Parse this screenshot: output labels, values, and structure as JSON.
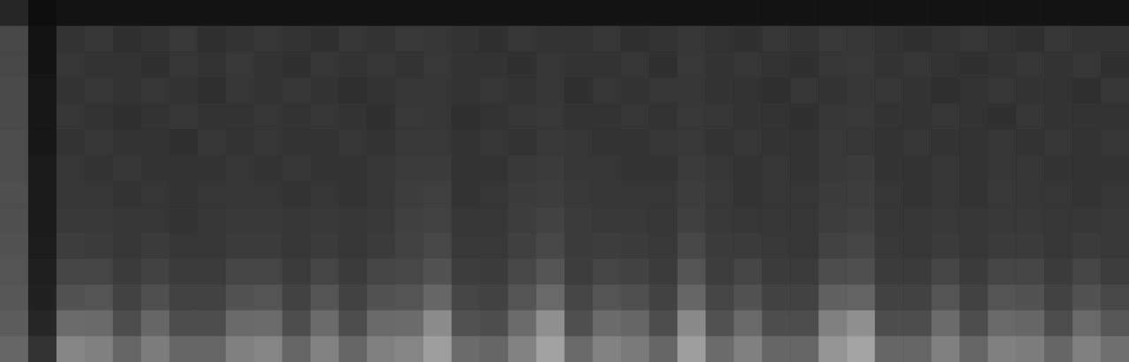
{
  "chart_data": {
    "type": "heatmap",
    "xlim": [
      0,
      40
    ],
    "ylim": [
      0,
      14
    ],
    "tick_labels": false,
    "color": "#ffffff",
    "color_range": [
      0,
      100
    ],
    "cells": [
      [
        15,
        5,
        8,
        8,
        8,
        8,
        8,
        8,
        8,
        8,
        8,
        8,
        8,
        8,
        8,
        8,
        8,
        8,
        8,
        8,
        8,
        8,
        8,
        8,
        8,
        8,
        8,
        8,
        8,
        8,
        8,
        8,
        8,
        8,
        8,
        8,
        8,
        8,
        8,
        8
      ],
      [
        28,
        8,
        20,
        21,
        19,
        20,
        22,
        19,
        20,
        21,
        20,
        19,
        21,
        20,
        22,
        21,
        20,
        19,
        21,
        20,
        20,
        21,
        19,
        20,
        21,
        20,
        19,
        21,
        20,
        22,
        21,
        20,
        19,
        20,
        21,
        20,
        19,
        21,
        20,
        20
      ],
      [
        28,
        8,
        21,
        20,
        20,
        19,
        21,
        20,
        22,
        20,
        19,
        21,
        20,
        21,
        20,
        22,
        20,
        20,
        19,
        21,
        20,
        20,
        21,
        19,
        22,
        20,
        21,
        20,
        19,
        21,
        22,
        20,
        21,
        20,
        19,
        20,
        21,
        20,
        21,
        19
      ],
      [
        29,
        9,
        20,
        21,
        20,
        21,
        20,
        19,
        21,
        20,
        21,
        20,
        19,
        20,
        21,
        21,
        20,
        21,
        20,
        21,
        19,
        21,
        20,
        21,
        21,
        20,
        20,
        19,
        21,
        20,
        21,
        21,
        20,
        19,
        20,
        21,
        20,
        20,
        19,
        21
      ],
      [
        29,
        9,
        21,
        20,
        19,
        20,
        21,
        20,
        20,
        21,
        20,
        21,
        20,
        19,
        22,
        21,
        19,
        20,
        21,
        22,
        20,
        20,
        21,
        20,
        22,
        21,
        20,
        20,
        19,
        21,
        22,
        20,
        20,
        21,
        20,
        19,
        21,
        20,
        20,
        20
      ],
      [
        30,
        9,
        20,
        21,
        20,
        20,
        19,
        21,
        20,
        21,
        20,
        20,
        21,
        20,
        22,
        22,
        20,
        21,
        20,
        22,
        21,
        20,
        20,
        21,
        22,
        20,
        21,
        20,
        20,
        22,
        21,
        20,
        21,
        20,
        20,
        21,
        20,
        21,
        20,
        21
      ],
      [
        30,
        10,
        21,
        20,
        21,
        20,
        20,
        20,
        21,
        20,
        21,
        20,
        20,
        21,
        23,
        23,
        20,
        20,
        22,
        23,
        21,
        21,
        20,
        20,
        23,
        21,
        20,
        21,
        20,
        22,
        23,
        20,
        20,
        21,
        20,
        21,
        21,
        20,
        20,
        20
      ],
      [
        31,
        10,
        21,
        21,
        20,
        21,
        20,
        21,
        21,
        21,
        20,
        21,
        20,
        21,
        24,
        25,
        20,
        21,
        23,
        24,
        22,
        21,
        21,
        21,
        24,
        22,
        20,
        21,
        21,
        23,
        24,
        21,
        20,
        21,
        20,
        22,
        21,
        21,
        20,
        21
      ],
      [
        31,
        10,
        22,
        22,
        21,
        21,
        20,
        21,
        22,
        22,
        21,
        22,
        21,
        22,
        25,
        26,
        21,
        21,
        24,
        26,
        23,
        22,
        22,
        21,
        25,
        22,
        21,
        21,
        21,
        24,
        25,
        21,
        21,
        22,
        21,
        22,
        22,
        21,
        21,
        22
      ],
      [
        32,
        11,
        24,
        23,
        21,
        23,
        21,
        21,
        23,
        23,
        21,
        23,
        21,
        23,
        26,
        28,
        22,
        22,
        25,
        28,
        23,
        24,
        23,
        22,
        28,
        23,
        23,
        22,
        21,
        26,
        27,
        22,
        21,
        23,
        21,
        23,
        23,
        21,
        23,
        22
      ],
      [
        33,
        12,
        27,
        27,
        23,
        26,
        23,
        23,
        27,
        27,
        23,
        27,
        23,
        27,
        28,
        32,
        24,
        23,
        28,
        33,
        24,
        27,
        26,
        23,
        33,
        24,
        27,
        23,
        23,
        30,
        31,
        23,
        23,
        27,
        23,
        27,
        27,
        23,
        27,
        24
      ],
      [
        34,
        13,
        32,
        33,
        26,
        31,
        26,
        26,
        32,
        33,
        26,
        33,
        26,
        32,
        33,
        40,
        27,
        26,
        33,
        41,
        27,
        33,
        31,
        26,
        40,
        27,
        32,
        26,
        26,
        38,
        39,
        26,
        26,
        33,
        26,
        33,
        32,
        26,
        32,
        28
      ],
      [
        36,
        15,
        42,
        41,
        30,
        40,
        30,
        30,
        41,
        42,
        30,
        42,
        30,
        41,
        42,
        55,
        32,
        30,
        42,
        56,
        31,
        42,
        40,
        30,
        54,
        32,
        41,
        30,
        30,
        50,
        56,
        30,
        30,
        42,
        30,
        41,
        40,
        30,
        41,
        34
      ],
      [
        40,
        20,
        52,
        50,
        40,
        49,
        40,
        40,
        50,
        52,
        40,
        51,
        40,
        50,
        52,
        62,
        42,
        40,
        51,
        63,
        41,
        51,
        48,
        40,
        62,
        42,
        50,
        40,
        40,
        58,
        64,
        40,
        40,
        50,
        40,
        50,
        49,
        40,
        50,
        44
      ]
    ]
  }
}
